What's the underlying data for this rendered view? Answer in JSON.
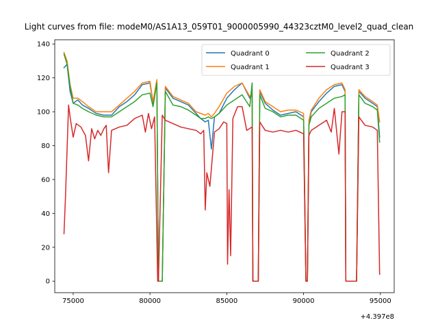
{
  "chart_data": {
    "type": "line",
    "title": "Light curves from file: modeM0/AS1A13_059T01_9000005990_44323cztM0_level2_quad_clean",
    "xlabel": "",
    "ylabel": "",
    "x_offset_label": "+4.397e8",
    "xlim": [
      73800,
      95900
    ],
    "ylim": [
      -6.8,
      142.5
    ],
    "x_ticks": [
      75000,
      80000,
      85000,
      90000,
      95000
    ],
    "x_tick_labels": [
      "75000",
      "80000",
      "85000",
      "90000",
      "95000"
    ],
    "y_ticks": [
      0,
      20,
      40,
      60,
      80,
      100,
      120,
      140
    ],
    "y_tick_labels": [
      "0",
      "20",
      "40",
      "60",
      "80",
      "100",
      "120",
      "140"
    ],
    "grid": false,
    "legend_position": "top-right",
    "legend_columns": 2,
    "colors": {
      "Quadrant 0": "#1f77b4",
      "Quadrant 1": "#ff7f0e",
      "Quadrant 2": "#2ca02c",
      "Quadrant 3": "#d62728"
    },
    "series": [
      {
        "name": "Quadrant 0",
        "x": [
          74400,
          74600,
          74800,
          75000,
          75300,
          75600,
          76000,
          76500,
          77000,
          77500,
          78000,
          78500,
          79000,
          79500,
          80000,
          80200,
          80450,
          80550,
          80800,
          81000,
          81500,
          82000,
          82500,
          83000,
          83300,
          83600,
          83800,
          84000,
          84200,
          84500,
          85000,
          85500,
          86000,
          86500,
          86650,
          86700,
          87050,
          87150,
          87500,
          88000,
          88500,
          89000,
          89500,
          90000,
          90150,
          90250,
          90350,
          90500,
          91000,
          91500,
          92000,
          92500,
          92700,
          92750,
          93000,
          93300,
          93450,
          93600,
          94000,
          94500,
          94800,
          94950
        ],
        "y": [
          126,
          128,
          112,
          105,
          107,
          104,
          102,
          99,
          98,
          98,
          103,
          106,
          110,
          116,
          117,
          105,
          118,
          0,
          0,
          114,
          108,
          106,
          104,
          99,
          96,
          94,
          95,
          78,
          97,
          99,
          108,
          113,
          117,
          108,
          110,
          0,
          0,
          112,
          105,
          101,
          98,
          99,
          100,
          97,
          0,
          0,
          93,
          100,
          106,
          111,
          115,
          116,
          112,
          0,
          0,
          0,
          0,
          112,
          108,
          105,
          103,
          85
        ]
      },
      {
        "name": "Quadrant 1",
        "x": [
          74400,
          74600,
          74800,
          75000,
          75300,
          75600,
          76000,
          76500,
          77000,
          77500,
          78000,
          78500,
          79000,
          79500,
          80000,
          80200,
          80450,
          80550,
          80800,
          81000,
          81500,
          82000,
          82500,
          83000,
          83300,
          83600,
          83800,
          84000,
          84200,
          84500,
          85000,
          85500,
          86000,
          86500,
          86650,
          86700,
          87050,
          87150,
          87500,
          88000,
          88500,
          89000,
          89500,
          90000,
          90150,
          90250,
          90350,
          90500,
          91000,
          91500,
          92000,
          92500,
          92700,
          92750,
          93000,
          93300,
          93450,
          93600,
          94000,
          94500,
          94800,
          94950
        ],
        "y": [
          135,
          130,
          116,
          108,
          108,
          106,
          103,
          100,
          100,
          100,
          104,
          108,
          112,
          117,
          118,
          106,
          119,
          0,
          0,
          115,
          109,
          107,
          105,
          100,
          99,
          98,
          99,
          97,
          99,
          103,
          111,
          115,
          117,
          109,
          111,
          0,
          0,
          113,
          106,
          103,
          100,
          101,
          101,
          99,
          0,
          0,
          95,
          101,
          108,
          113,
          116,
          117,
          113,
          0,
          0,
          0,
          0,
          113,
          109,
          106,
          104,
          94
        ]
      },
      {
        "name": "Quadrant 2",
        "x": [
          74400,
          74600,
          74800,
          75000,
          75300,
          75600,
          76000,
          76500,
          77000,
          77500,
          78000,
          78500,
          79000,
          79500,
          80000,
          80200,
          80450,
          80550,
          80800,
          81000,
          81500,
          82000,
          82500,
          83000,
          83300,
          83600,
          83800,
          84000,
          84200,
          84500,
          85000,
          85500,
          86000,
          86500,
          86650,
          86700,
          87050,
          87150,
          87500,
          88000,
          88500,
          89000,
          89500,
          90000,
          90150,
          90250,
          90350,
          90500,
          91000,
          91500,
          92000,
          92500,
          92700,
          92750,
          93000,
          93300,
          93450,
          93600,
          94000,
          94500,
          94800,
          94950
        ],
        "y": [
          134,
          128,
          115,
          105,
          104,
          102,
          100,
          98,
          97,
          97,
          100,
          103,
          106,
          110,
          111,
          103,
          117,
          0,
          0,
          112,
          104,
          103,
          101,
          98,
          96,
          96,
          97,
          96,
          97,
          99,
          104,
          107,
          110,
          103,
          117,
          0,
          0,
          110,
          102,
          100,
          97,
          98,
          98,
          95,
          0,
          0,
          92,
          97,
          102,
          105,
          108,
          109,
          110,
          0,
          0,
          0,
          0,
          110,
          105,
          103,
          101,
          82
        ]
      },
      {
        "name": "Quadrant 3",
        "x": [
          74400,
          74500,
          74700,
          74800,
          75000,
          75200,
          75500,
          75800,
          76000,
          76200,
          76400,
          76600,
          76800,
          77000,
          77150,
          77300,
          77500,
          78000,
          78500,
          79000,
          79500,
          79700,
          79900,
          80100,
          80300,
          80500,
          80550,
          80800,
          81000,
          81500,
          82000,
          82500,
          83000,
          83300,
          83500,
          83600,
          83700,
          83900,
          84200,
          84500,
          84800,
          85000,
          85050,
          85150,
          85250,
          85400,
          85700,
          86000,
          86300,
          86650,
          86700,
          87050,
          87150,
          87500,
          88000,
          88500,
          89000,
          89500,
          90000,
          90150,
          90250,
          90350,
          90500,
          91000,
          91500,
          91800,
          92000,
          92300,
          92500,
          92700,
          92750,
          93000,
          93300,
          93450,
          93600,
          94000,
          94500,
          94800,
          94950
        ],
        "y": [
          28,
          50,
          104,
          97,
          85,
          93,
          91,
          86,
          71,
          90,
          84,
          89,
          86,
          90,
          92,
          64,
          89,
          91,
          92,
          96,
          98,
          88,
          99,
          90,
          97,
          0,
          0,
          98,
          95,
          93,
          91,
          90,
          89,
          87,
          89,
          42,
          64,
          56,
          88,
          90,
          94,
          93,
          10,
          54,
          15,
          96,
          103,
          103,
          89,
          91,
          0,
          0,
          94,
          89,
          88,
          89,
          88,
          89,
          87,
          0,
          0,
          86,
          89,
          92,
          95,
          88,
          102,
          75,
          100,
          100,
          0,
          0,
          0,
          0,
          97,
          92,
          91,
          89,
          4
        ]
      }
    ]
  }
}
